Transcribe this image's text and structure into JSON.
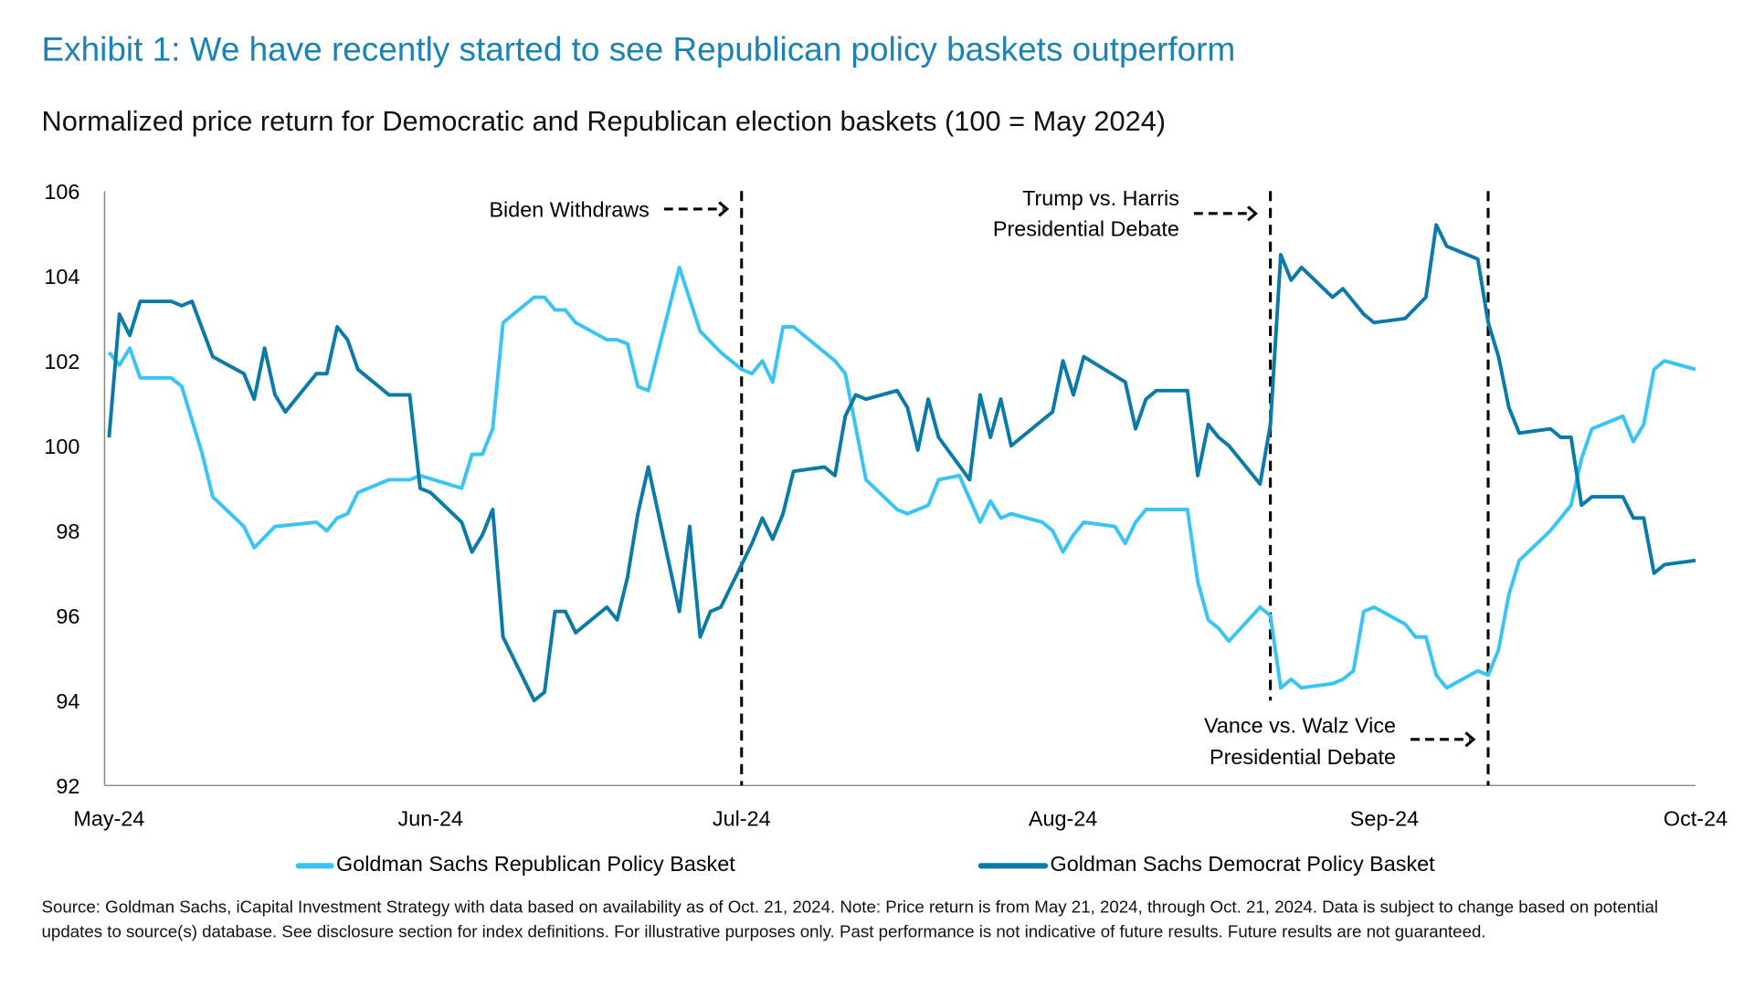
{
  "title": "Exhibit 1: We have recently started to see Republican policy baskets outperform",
  "subtitle": "Normalized price return for Democratic and Republican election baskets (100 = May 2024)",
  "footer": "Source: Goldman Sachs, iCapital Investment Strategy with data based on availability as of Oct. 21, 2024. Note: Price return is from May 21, 2024, through Oct. 21, 2024. Data is subject to change based on potential updates to source(s) database. See disclosure section for index definitions. For illustrative purposes only. Past performance is not indicative of future results. Future results are not guaranteed.",
  "chart_data": {
    "type": "line",
    "title": "Exhibit 1: We have recently started to see Republican policy baskets outperform",
    "subtitle": "Normalized price return for Democratic and Republican election baskets (100 = May 2024)",
    "ylim": [
      92,
      106
    ],
    "yticks": [
      92,
      94,
      96,
      98,
      100,
      102,
      104,
      106
    ],
    "xlim": [
      "2024-05-21",
      "2024-10-21"
    ],
    "xticks": [
      {
        "date": "2024-05-21",
        "label": "May-24"
      },
      {
        "date": "2024-06-21",
        "label": "Jun-24"
      },
      {
        "date": "2024-07-21",
        "label": "Jul-24"
      },
      {
        "date": "2024-08-21",
        "label": "Aug-24"
      },
      {
        "date": "2024-09-21",
        "label": "Sep-24"
      },
      {
        "date": "2024-10-21",
        "label": "Oct-24"
      }
    ],
    "grid": false,
    "legend_placement": "bottom",
    "series": [
      {
        "name": "Goldman Sachs Republican Policy Basket",
        "color": "#38c4f5",
        "points": [
          [
            "2024-05-21",
            102.2
          ],
          [
            "2024-05-22",
            101.9
          ],
          [
            "2024-05-23",
            102.3
          ],
          [
            "2024-05-24",
            101.6
          ],
          [
            "2024-05-27",
            101.6
          ],
          [
            "2024-05-28",
            101.4
          ],
          [
            "2024-05-29",
            100.6
          ],
          [
            "2024-05-30",
            99.8
          ],
          [
            "2024-05-31",
            98.8
          ],
          [
            "2024-06-03",
            98.1
          ],
          [
            "2024-06-04",
            97.6
          ],
          [
            "2024-06-06",
            98.1
          ],
          [
            "2024-06-10",
            98.2
          ],
          [
            "2024-06-11",
            98.0
          ],
          [
            "2024-06-12",
            98.3
          ],
          [
            "2024-06-13",
            98.4
          ],
          [
            "2024-06-14",
            98.9
          ],
          [
            "2024-06-17",
            99.2
          ],
          [
            "2024-06-19",
            99.2
          ],
          [
            "2024-06-20",
            99.3
          ],
          [
            "2024-06-24",
            99.0
          ],
          [
            "2024-06-25",
            99.8
          ],
          [
            "2024-06-26",
            99.8
          ],
          [
            "2024-06-27",
            100.4
          ],
          [
            "2024-06-28",
            102.9
          ],
          [
            "2024-07-01",
            103.5
          ],
          [
            "2024-07-02",
            103.5
          ],
          [
            "2024-07-03",
            103.2
          ],
          [
            "2024-07-04",
            103.2
          ],
          [
            "2024-07-05",
            102.9
          ],
          [
            "2024-07-08",
            102.5
          ],
          [
            "2024-07-09",
            102.5
          ],
          [
            "2024-07-10",
            102.4
          ],
          [
            "2024-07-11",
            101.4
          ],
          [
            "2024-07-12",
            101.3
          ],
          [
            "2024-07-15",
            104.2
          ],
          [
            "2024-07-17",
            102.7
          ],
          [
            "2024-07-19",
            102.2
          ],
          [
            "2024-07-21",
            101.8
          ],
          [
            "2024-07-22",
            101.7
          ],
          [
            "2024-07-23",
            102.0
          ],
          [
            "2024-07-24",
            101.5
          ],
          [
            "2024-07-25",
            102.8
          ],
          [
            "2024-07-26",
            102.8
          ],
          [
            "2024-07-30",
            102.0
          ],
          [
            "2024-07-31",
            101.7
          ],
          [
            "2024-08-02",
            99.2
          ],
          [
            "2024-08-05",
            98.5
          ],
          [
            "2024-08-06",
            98.4
          ],
          [
            "2024-08-08",
            98.6
          ],
          [
            "2024-08-09",
            99.2
          ],
          [
            "2024-08-11",
            99.3
          ],
          [
            "2024-08-13",
            98.2
          ],
          [
            "2024-08-14",
            98.7
          ],
          [
            "2024-08-15",
            98.3
          ],
          [
            "2024-08-16",
            98.4
          ],
          [
            "2024-08-19",
            98.2
          ],
          [
            "2024-08-20",
            98.0
          ],
          [
            "2024-08-21",
            97.5
          ],
          [
            "2024-08-22",
            97.9
          ],
          [
            "2024-08-23",
            98.2
          ],
          [
            "2024-08-26",
            98.1
          ],
          [
            "2024-08-27",
            97.7
          ],
          [
            "2024-08-28",
            98.2
          ],
          [
            "2024-08-29",
            98.5
          ],
          [
            "2024-09-02",
            98.5
          ],
          [
            "2024-09-03",
            96.8
          ],
          [
            "2024-09-04",
            95.9
          ],
          [
            "2024-09-05",
            95.7
          ],
          [
            "2024-09-06",
            95.4
          ],
          [
            "2024-09-09",
            96.2
          ],
          [
            "2024-09-10",
            96.0
          ],
          [
            "2024-09-11",
            94.3
          ],
          [
            "2024-09-12",
            94.5
          ],
          [
            "2024-09-13",
            94.3
          ],
          [
            "2024-09-16",
            94.4
          ],
          [
            "2024-09-17",
            94.5
          ],
          [
            "2024-09-18",
            94.7
          ],
          [
            "2024-09-19",
            96.1
          ],
          [
            "2024-09-20",
            96.2
          ],
          [
            "2024-09-23",
            95.8
          ],
          [
            "2024-09-24",
            95.5
          ],
          [
            "2024-09-25",
            95.5
          ],
          [
            "2024-09-26",
            94.6
          ],
          [
            "2024-09-27",
            94.3
          ],
          [
            "2024-09-30",
            94.7
          ],
          [
            "2024-10-01",
            94.6
          ],
          [
            "2024-10-02",
            95.2
          ],
          [
            "2024-10-03",
            96.5
          ],
          [
            "2024-10-04",
            97.3
          ],
          [
            "2024-10-07",
            98.0
          ],
          [
            "2024-10-09",
            98.6
          ],
          [
            "2024-10-10",
            99.7
          ],
          [
            "2024-10-11",
            100.4
          ],
          [
            "2024-10-14",
            100.7
          ],
          [
            "2024-10-15",
            100.1
          ],
          [
            "2024-10-16",
            100.5
          ],
          [
            "2024-10-17",
            101.8
          ],
          [
            "2024-10-18",
            102.0
          ],
          [
            "2024-10-21",
            101.8
          ]
        ]
      },
      {
        "name": "Goldman Sachs Democrat Policy Basket",
        "color": "#0a7aa8",
        "points": [
          [
            "2024-05-21",
            100.2
          ],
          [
            "2024-05-22",
            103.1
          ],
          [
            "2024-05-23",
            102.6
          ],
          [
            "2024-05-24",
            103.4
          ],
          [
            "2024-05-27",
            103.4
          ],
          [
            "2024-05-28",
            103.3
          ],
          [
            "2024-05-29",
            103.4
          ],
          [
            "2024-05-31",
            102.1
          ],
          [
            "2024-06-03",
            101.7
          ],
          [
            "2024-06-04",
            101.1
          ],
          [
            "2024-06-05",
            102.3
          ],
          [
            "2024-06-06",
            101.2
          ],
          [
            "2024-06-07",
            100.8
          ],
          [
            "2024-06-10",
            101.7
          ],
          [
            "2024-06-11",
            101.7
          ],
          [
            "2024-06-12",
            102.8
          ],
          [
            "2024-06-13",
            102.5
          ],
          [
            "2024-06-14",
            101.8
          ],
          [
            "2024-06-17",
            101.2
          ],
          [
            "2024-06-18",
            101.2
          ],
          [
            "2024-06-19",
            101.2
          ],
          [
            "2024-06-20",
            99.0
          ],
          [
            "2024-06-21",
            98.9
          ],
          [
            "2024-06-24",
            98.2
          ],
          [
            "2024-06-25",
            97.5
          ],
          [
            "2024-06-26",
            97.9
          ],
          [
            "2024-06-27",
            98.5
          ],
          [
            "2024-06-28",
            95.5
          ],
          [
            "2024-07-01",
            94.0
          ],
          [
            "2024-07-02",
            94.2
          ],
          [
            "2024-07-03",
            96.1
          ],
          [
            "2024-07-04",
            96.1
          ],
          [
            "2024-07-05",
            95.6
          ],
          [
            "2024-07-08",
            96.2
          ],
          [
            "2024-07-09",
            95.9
          ],
          [
            "2024-07-10",
            96.9
          ],
          [
            "2024-07-11",
            98.4
          ],
          [
            "2024-07-12",
            99.5
          ],
          [
            "2024-07-15",
            96.1
          ],
          [
            "2024-07-16",
            98.1
          ],
          [
            "2024-07-17",
            95.5
          ],
          [
            "2024-07-18",
            96.1
          ],
          [
            "2024-07-19",
            96.2
          ],
          [
            "2024-07-21",
            97.2
          ],
          [
            "2024-07-22",
            97.7
          ],
          [
            "2024-07-23",
            98.3
          ],
          [
            "2024-07-24",
            97.8
          ],
          [
            "2024-07-25",
            98.4
          ],
          [
            "2024-07-26",
            99.4
          ],
          [
            "2024-07-29",
            99.5
          ],
          [
            "2024-07-30",
            99.3
          ],
          [
            "2024-07-31",
            100.7
          ],
          [
            "2024-08-01",
            101.2
          ],
          [
            "2024-08-02",
            101.1
          ],
          [
            "2024-08-05",
            101.3
          ],
          [
            "2024-08-06",
            100.9
          ],
          [
            "2024-08-07",
            99.9
          ],
          [
            "2024-08-08",
            101.1
          ],
          [
            "2024-08-09",
            100.2
          ],
          [
            "2024-08-12",
            99.2
          ],
          [
            "2024-08-13",
            101.2
          ],
          [
            "2024-08-14",
            100.2
          ],
          [
            "2024-08-15",
            101.1
          ],
          [
            "2024-08-16",
            100.0
          ],
          [
            "2024-08-20",
            100.8
          ],
          [
            "2024-08-21",
            102.0
          ],
          [
            "2024-08-22",
            101.2
          ],
          [
            "2024-08-23",
            102.1
          ],
          [
            "2024-08-27",
            101.5
          ],
          [
            "2024-08-28",
            100.4
          ],
          [
            "2024-08-29",
            101.1
          ],
          [
            "2024-08-30",
            101.3
          ],
          [
            "2024-09-02",
            101.3
          ],
          [
            "2024-09-03",
            99.3
          ],
          [
            "2024-09-04",
            100.5
          ],
          [
            "2024-09-05",
            100.2
          ],
          [
            "2024-09-06",
            100.0
          ],
          [
            "2024-09-09",
            99.1
          ],
          [
            "2024-09-10",
            100.5
          ],
          [
            "2024-09-11",
            104.5
          ],
          [
            "2024-09-12",
            103.9
          ],
          [
            "2024-09-13",
            104.2
          ],
          [
            "2024-09-16",
            103.5
          ],
          [
            "2024-09-17",
            103.7
          ],
          [
            "2024-09-19",
            103.1
          ],
          [
            "2024-09-20",
            102.9
          ],
          [
            "2024-09-23",
            103.0
          ],
          [
            "2024-09-25",
            103.5
          ],
          [
            "2024-09-26",
            105.2
          ],
          [
            "2024-09-27",
            104.7
          ],
          [
            "2024-09-30",
            104.4
          ],
          [
            "2024-10-01",
            102.9
          ],
          [
            "2024-10-02",
            102.1
          ],
          [
            "2024-10-03",
            100.9
          ],
          [
            "2024-10-04",
            100.3
          ],
          [
            "2024-10-07",
            100.4
          ],
          [
            "2024-10-08",
            100.2
          ],
          [
            "2024-10-09",
            100.2
          ],
          [
            "2024-10-10",
            98.6
          ],
          [
            "2024-10-11",
            98.8
          ],
          [
            "2024-10-14",
            98.8
          ],
          [
            "2024-10-15",
            98.3
          ],
          [
            "2024-10-16",
            98.3
          ],
          [
            "2024-10-17",
            97.0
          ],
          [
            "2024-10-18",
            97.2
          ],
          [
            "2024-10-21",
            97.3
          ]
        ]
      }
    ],
    "annotations": [
      {
        "date": "2024-07-21",
        "lines": [
          "Biden Withdraws"
        ],
        "ymin": 92,
        "ymax": 106
      },
      {
        "date": "2024-09-10",
        "lines": [
          "Trump vs. Harris",
          "Presidential Debate"
        ],
        "ymin": 94,
        "ymax": 106
      },
      {
        "date": "2024-10-01",
        "lines": [
          "Vance vs. Walz Vice",
          "Presidential Debate"
        ],
        "ymin": 92,
        "ymax": 106
      }
    ]
  }
}
